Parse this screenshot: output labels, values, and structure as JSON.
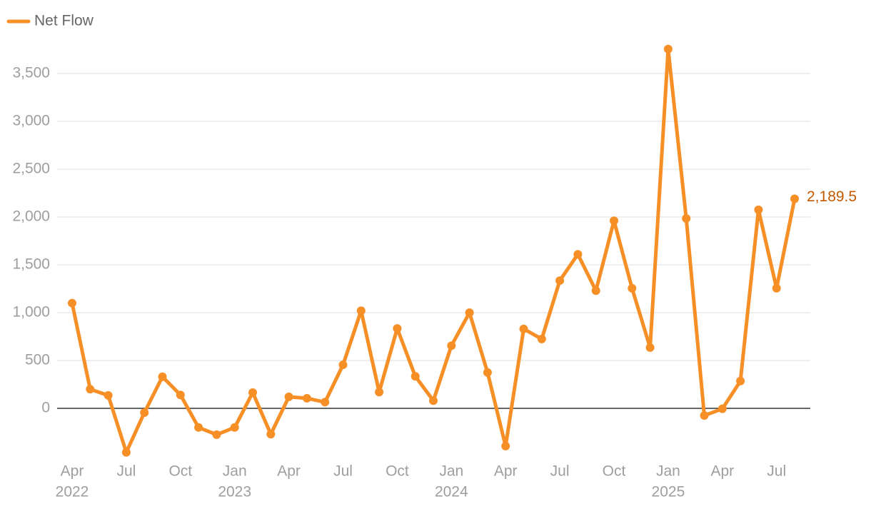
{
  "chart_data": {
    "type": "line",
    "categories": [
      "Apr",
      null,
      null,
      "Jul",
      null,
      null,
      "Oct",
      null,
      null,
      "Jan",
      null,
      null,
      "Apr",
      null,
      null,
      "Jul",
      null,
      null,
      "Oct",
      null,
      null,
      "Jan",
      null,
      null,
      "Apr",
      null,
      null,
      "Jul",
      null,
      null,
      "Oct",
      null,
      null,
      "Jan",
      null,
      null,
      "Apr",
      null,
      null,
      "Jul",
      null
    ],
    "year_labels": [
      "2022",
      null,
      null,
      null,
      null,
      null,
      null,
      null,
      null,
      "2023",
      null,
      null,
      null,
      null,
      null,
      null,
      null,
      null,
      null,
      null,
      null,
      "2024",
      null,
      null,
      null,
      null,
      null,
      null,
      null,
      null,
      null,
      null,
      null,
      "2025",
      null,
      null,
      null,
      null,
      null,
      null,
      null
    ],
    "series": [
      {
        "name": "Net Flow",
        "color": "#f78f27",
        "values": [
          1100,
          200,
          135,
          -460,
          -45,
          330,
          140,
          -200,
          -275,
          -200,
          165,
          -270,
          120,
          105,
          65,
          455,
          1020,
          170,
          835,
          335,
          80,
          655,
          1000,
          375,
          -395,
          830,
          725,
          1335,
          1610,
          1230,
          1960,
          1255,
          635,
          3755,
          1985,
          -75,
          -5,
          285,
          2075,
          1255,
          2189.5
        ],
        "value_labels": [
          null,
          null,
          null,
          null,
          null,
          null,
          null,
          null,
          null,
          null,
          null,
          null,
          null,
          null,
          null,
          null,
          null,
          null,
          null,
          null,
          null,
          null,
          null,
          null,
          null,
          null,
          null,
          null,
          null,
          null,
          null,
          null,
          null,
          null,
          null,
          null,
          null,
          null,
          null,
          null,
          "2,189.5"
        ],
        "value_label_color": "#c55a00"
      }
    ],
    "ylim": [
      -500,
      3850
    ],
    "yticks": [
      0,
      500,
      {
        "value": 1000,
        "label": "1,000"
      },
      {
        "value": 1500,
        "label": "1,500"
      },
      {
        "value": 2000,
        "label": "2,000"
      },
      {
        "value": 2500,
        "label": "2,500"
      },
      {
        "value": 3000,
        "label": "3,000"
      },
      {
        "value": 3500,
        "label": "3,500"
      }
    ],
    "grid": true,
    "legend": "top-left"
  }
}
